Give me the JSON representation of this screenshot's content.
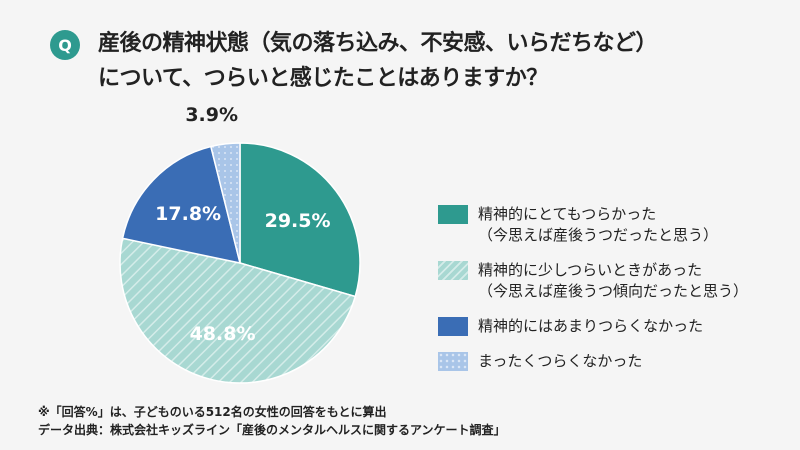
{
  "header": {
    "q_badge": "Q",
    "title_line1": "産後の精神状態（気の落ち込み、不安感、いらだちなど）",
    "title_line2": "について、つらいと感じたことはありますか？"
  },
  "chart_data": {
    "type": "pie",
    "start": "top",
    "direction": "clockwise",
    "slices": [
      {
        "label_line1": "精神的にとてもつらかった",
        "label_line2": "（今思えば産後うつだったと思う）",
        "value": 29.5,
        "value_label": "29.5%",
        "color": "#2e9a8f",
        "pattern": "solid"
      },
      {
        "label_line1": "精神的に少しつらいときがあった",
        "label_line2": "（今思えば産後うつ傾向だったと思う）",
        "value": 48.8,
        "value_label": "48.8%",
        "color": "#a8d8d2",
        "pattern": "hatch"
      },
      {
        "label_line1": "精神的にはあまりつらくなかった",
        "label_line2": "",
        "value": 17.8,
        "value_label": "17.8%",
        "color": "#3a6db5",
        "pattern": "solid"
      },
      {
        "label_line1": "まったくつらくなかった",
        "label_line2": "",
        "value": 3.9,
        "value_label": "3.9%",
        "color": "#a9c5e8",
        "pattern": "dots"
      }
    ],
    "legend": "right"
  },
  "footer": {
    "note": "※「回答%」は、子どものいる512名の女性の回答をもとに算出",
    "source": "データ出典：株式会社キッズライン「産後のメンタルヘルスに関するアンケート調査」"
  }
}
